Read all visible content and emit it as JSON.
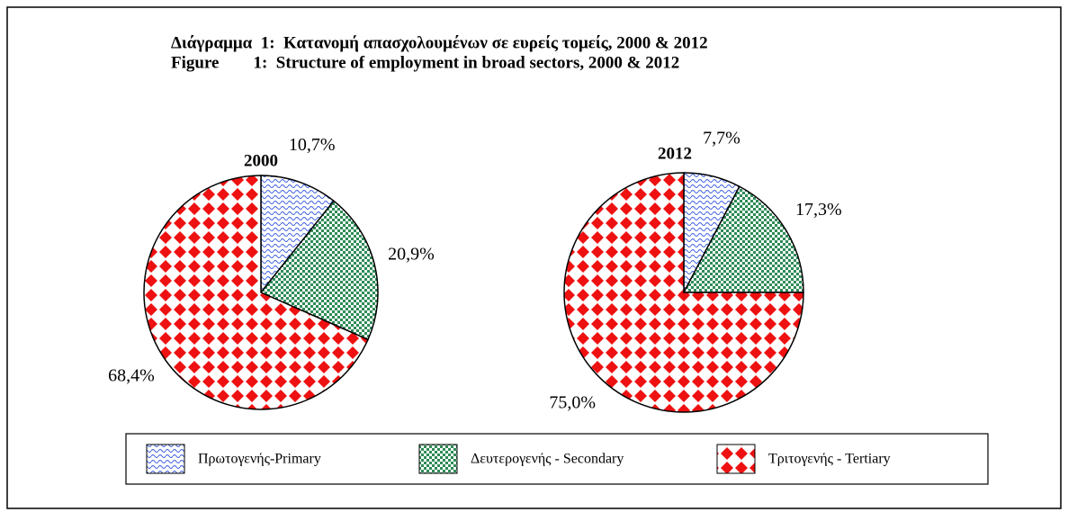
{
  "header": {
    "title_el": "Διάγραμμα  1:  Κατανομή απασχολουμένων σε ευρείς τομείς, 2000 & 2012",
    "title_en": "Figure        1:  Structure of employment in broad sectors, 2000 & 2012"
  },
  "chart_data": [
    {
      "type": "pie",
      "title": "2000",
      "categories": [
        "Πρωτογενής-Primary",
        "Δευτερογενής - Secondary",
        "Τριτογενής - Tertiary"
      ],
      "values": [
        10.7,
        20.9,
        68.4
      ],
      "value_labels": [
        "10,7%",
        "20,9%",
        "68,4%"
      ],
      "colors": [
        "#3a5ee0",
        "#2e8b57",
        "#ee1111"
      ]
    },
    {
      "type": "pie",
      "title": "2012",
      "categories": [
        "Πρωτογενής-Primary",
        "Δευτερογενής - Secondary",
        "Τριτογενής - Tertiary"
      ],
      "values": [
        7.7,
        17.3,
        75.0
      ],
      "value_labels": [
        "7,7%",
        "17,3%",
        "75,0%"
      ],
      "colors": [
        "#3a5ee0",
        "#2e8b57",
        "#ee1111"
      ]
    }
  ]
}
